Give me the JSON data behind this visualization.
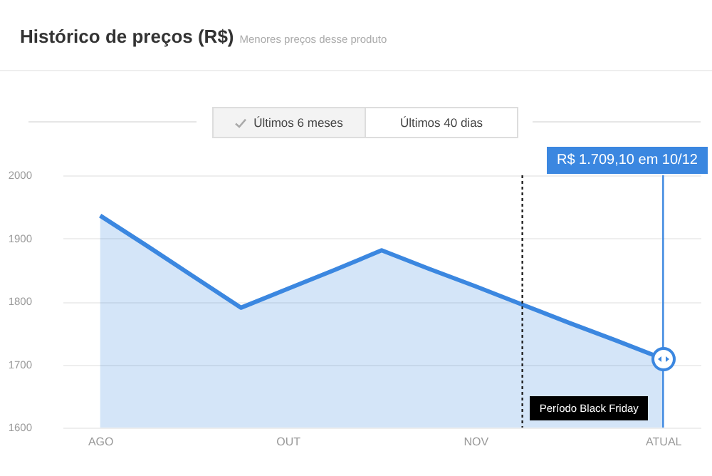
{
  "chart_data": {
    "type": "area",
    "title": "Histórico de preços (R$)",
    "subtitle": "Menores preços desse produto",
    "annotations": [
      "Últimos 6 meses",
      "Últimos 40 dias",
      "R$ 1.709,10 em 10/12",
      "Período Black Friday"
    ],
    "categories": [
      "AGO",
      null,
      null,
      null,
      "OUT",
      null,
      null,
      null,
      "NOV",
      null,
      null,
      null,
      "ATUAL"
    ],
    "series": [
      {
        "color": "#3b87e0",
        "values": [
          1936,
          1888,
          1839,
          1790,
          1820,
          1850,
          1881,
          1852,
          1824,
          1795,
          1766,
          1738,
          1709
        ]
      }
    ],
    "ylim": [
      1600,
      2000
    ],
    "yticks": [
      1600,
      1700,
      1800,
      1900,
      2000
    ],
    "grid": "y",
    "marker": "none",
    "line_style": "solid",
    "ref_lines": [
      {
        "axis": "x",
        "value": "ATUAL",
        "color": "#3b87e0"
      }
    ]
  }
}
